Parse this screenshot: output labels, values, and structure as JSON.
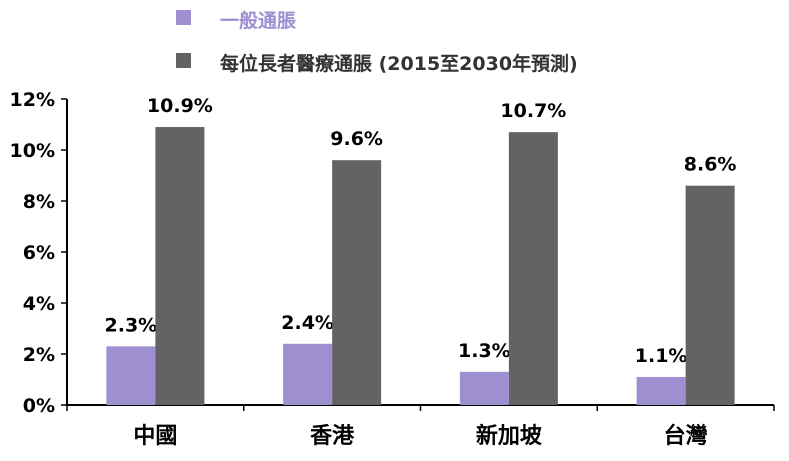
{
  "chart_data": {
    "type": "bar",
    "title": "",
    "xlabel": "",
    "ylabel": "",
    "categories": [
      "中國",
      "香港",
      "新加坡",
      "台灣"
    ],
    "series": [
      {
        "name": "一般通脹",
        "values": [
          2.3,
          2.4,
          1.3,
          1.1
        ],
        "labels": [
          "2.3%",
          "2.4%",
          "1.3%",
          "1.1%"
        ],
        "color": "#9e8fd1"
      },
      {
        "name": "每位長者醫療通脹 (2015至2030年預測)",
        "values": [
          10.9,
          9.6,
          10.7,
          8.6
        ],
        "labels": [
          "10.9%",
          "9.6%",
          "10.7%",
          "8.6%"
        ],
        "color": "#636363"
      }
    ],
    "ylim": [
      0,
      12
    ],
    "yticks": [
      0,
      2,
      4,
      6,
      8,
      10,
      12
    ],
    "ytick_labels": [
      "0%",
      "2%",
      "4%",
      "6%",
      "8%",
      "10%",
      "12%"
    ],
    "grid": false,
    "legend_position": "top",
    "legend_label_colors": [
      "#9e8fd1",
      "#333333"
    ]
  }
}
